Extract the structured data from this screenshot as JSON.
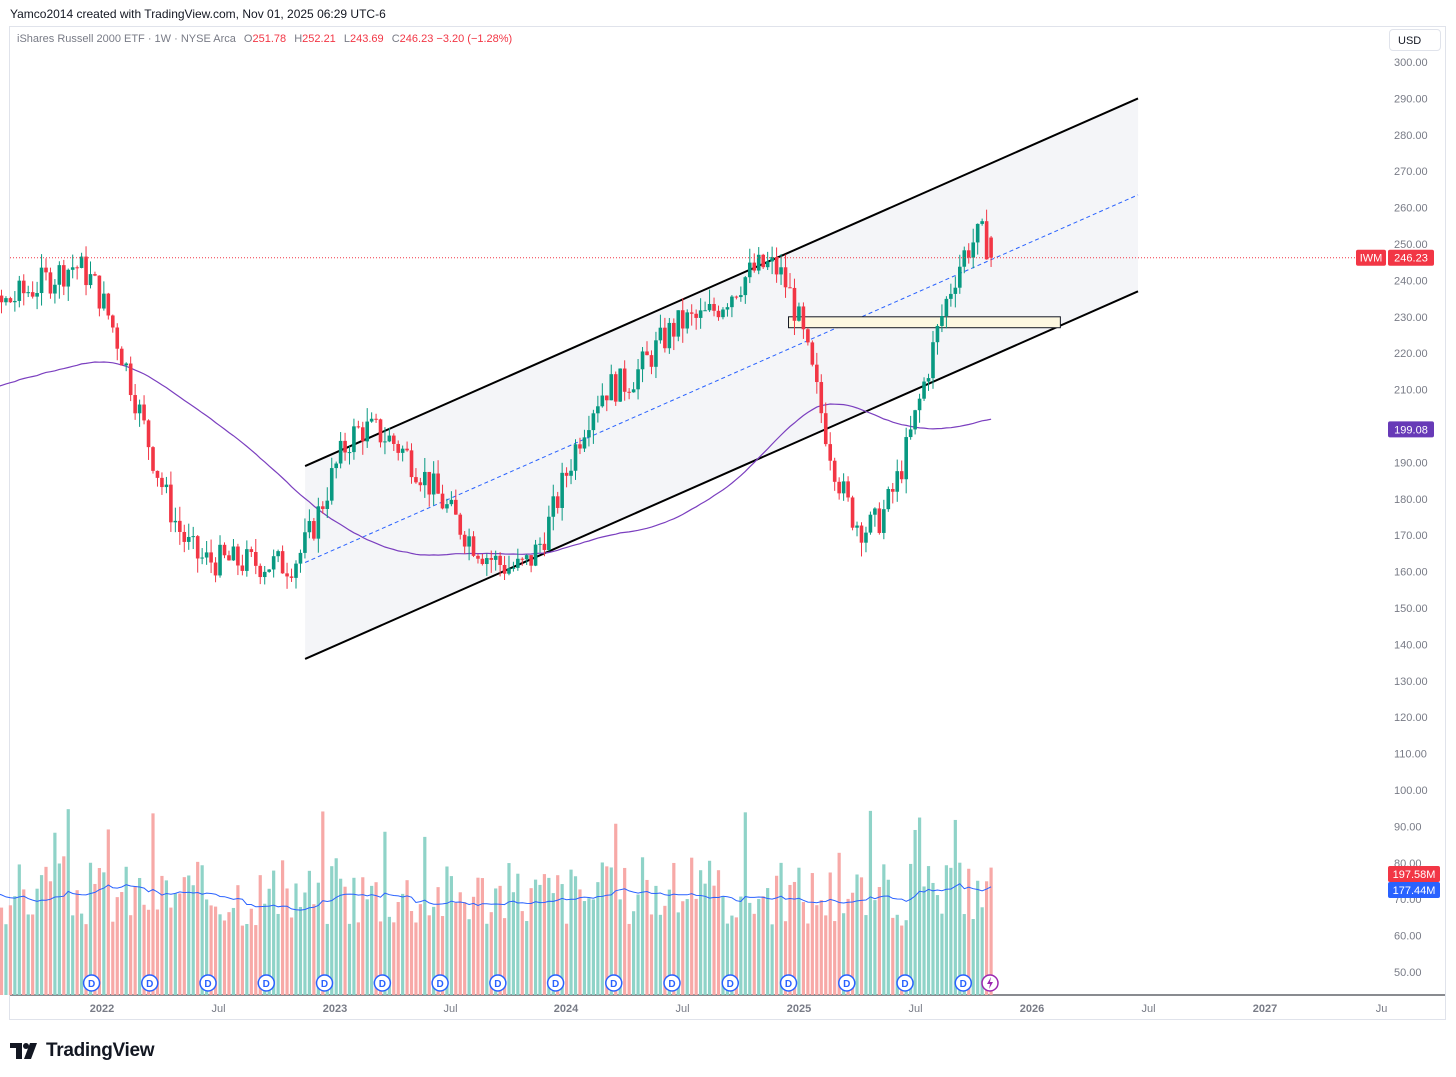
{
  "header": {
    "attribution": "Yamco2014 created with TradingView.com, Nov 01, 2025 06:29 UTC-6"
  },
  "legend": {
    "symbol_desc": "iShares Russell 2000 ETF · 1W · NYSE Arca",
    "o_label": "O",
    "o_value": "251.78",
    "h_label": "H",
    "h_value": "252.21",
    "l_label": "L",
    "l_value": "243.69",
    "c_label": "C",
    "c_value": "246.23",
    "change": "−3.20 (−1.28%)"
  },
  "currency_button": "USD",
  "brand": "TradingView",
  "colors": {
    "up": "#089981",
    "down": "#f23645",
    "vol_up": "#8fd3c8",
    "vol_down": "#f7a9a7",
    "ma": "#7b3fbf",
    "vol_ma": "#2962ff",
    "channel": "#000000",
    "midline": "#2962ff",
    "zone_fill": "#fdf8e1"
  },
  "chart_data": {
    "type": "candlestick",
    "symbol": "IWM",
    "interval": "1W",
    "ylim": [
      0,
      305
    ],
    "price_ticks": [
      "300.00",
      "290.00",
      "280.00",
      "270.00",
      "260.00",
      "250.00",
      "240.00",
      "230.00",
      "220.00",
      "210.00",
      "200.00",
      "190.00",
      "180.00",
      "170.00",
      "160.00",
      "150.00",
      "140.00",
      "130.00",
      "120.00",
      "110.00",
      "100.00",
      "90.00",
      "80.00",
      "70.00",
      "60.00",
      "50.00"
    ],
    "x_ticks": [
      "2022",
      "Jul",
      "2023",
      "Jul",
      "2024",
      "Jul",
      "2025",
      "Jul",
      "2026",
      "Jul",
      "2027",
      "Ju"
    ],
    "last_price": {
      "label": "IWM",
      "value": "246.23"
    },
    "ma_label": "199.08",
    "volume_labels": [
      "197.58M",
      "177.44M"
    ],
    "dividend_marker": "D",
    "key_prices": [
      {
        "date": "2021-11",
        "price": 244
      },
      {
        "date": "2022-06",
        "price": 163
      },
      {
        "date": "2022-10",
        "price": 162
      },
      {
        "date": "2023-02",
        "price": 199
      },
      {
        "date": "2023-10",
        "price": 161
      },
      {
        "date": "2024-03",
        "price": 211
      },
      {
        "date": "2024-07",
        "price": 229
      },
      {
        "date": "2024-11",
        "price": 244
      },
      {
        "date": "2025-04",
        "price": 172
      },
      {
        "date": "2025-10",
        "price": 252
      },
      {
        "date": "2025-10-31",
        "price": 246.23
      }
    ],
    "channel": {
      "upper_start": {
        "date": "2022-11",
        "price": 189
      },
      "upper_end": {
        "date": "2026-06",
        "price": 290
      },
      "lower_start": {
        "date": "2022-11",
        "price": 136
      },
      "lower_end": {
        "date": "2026-06",
        "price": 237
      }
    },
    "zone": {
      "from": "2024-12",
      "to": "2026-02",
      "low": 227,
      "high": 230
    }
  }
}
